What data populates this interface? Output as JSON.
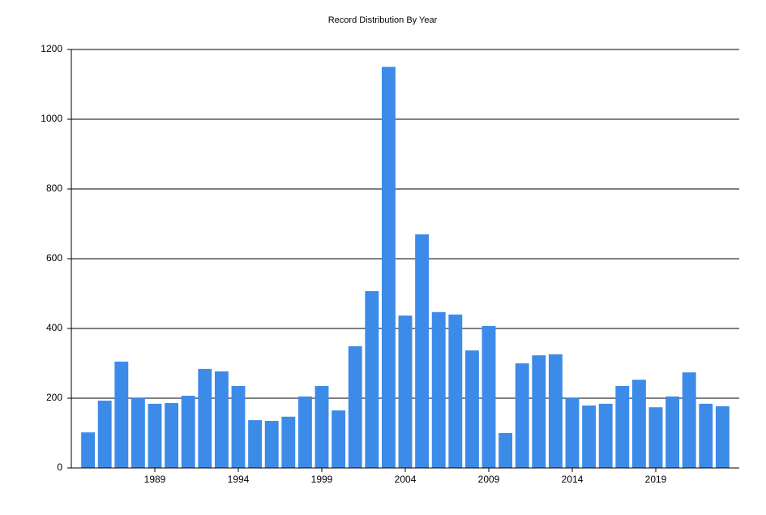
{
  "chart_data": {
    "type": "bar",
    "title": "Record Distribution By Year",
    "x": [
      1985,
      1986,
      1987,
      1988,
      1989,
      1990,
      1991,
      1992,
      1993,
      1994,
      1995,
      1996,
      1997,
      1998,
      1999,
      2000,
      2001,
      2002,
      2003,
      2004,
      2005,
      2006,
      2007,
      2008,
      2009,
      2010,
      2011,
      2012,
      2013,
      2014,
      2015,
      2016,
      2017,
      2018,
      2019,
      2020,
      2021,
      2022,
      2023
    ],
    "values": [
      102,
      193,
      305,
      202,
      184,
      186,
      207,
      284,
      277,
      235,
      137,
      135,
      147,
      205,
      235,
      165,
      349,
      507,
      1150,
      437,
      670,
      447,
      440,
      337,
      407,
      100,
      300,
      323,
      326,
      202,
      179,
      184,
      235,
      253,
      174,
      205,
      274,
      184,
      177
    ],
    "color": "#3d8be8",
    "xlim": [
      1984,
      2024
    ],
    "xticks": [
      1989,
      1994,
      1999,
      2004,
      2009,
      2014,
      2019
    ],
    "ylim": [
      0,
      1200
    ],
    "yticks": [
      0,
      200,
      400,
      600,
      800,
      1000,
      1200
    ],
    "grid": true
  }
}
